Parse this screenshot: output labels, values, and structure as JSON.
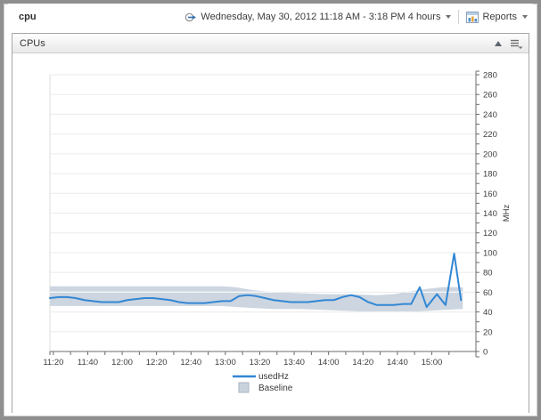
{
  "window": {
    "title": "cpu"
  },
  "topbar": {
    "timerange": "Wednesday, May 30, 2012 11:18 AM - 3:18 PM 4 hours",
    "timerange_icon": "time-range-arrow-icon",
    "reports_label": "Reports",
    "reports_icon": "report-table-icon"
  },
  "panel": {
    "title": "CPUs",
    "collapse_icon": "collapse-up-triangle",
    "menu_icon": "list-menu-with-caret"
  },
  "chart_data": {
    "type": "line",
    "title": "",
    "xlabel": "",
    "ylabel": "MHz",
    "ylim": [
      0,
      280
    ],
    "y_label_step": 20,
    "y_minor_step": 10,
    "grid": true,
    "legend_position": "bottom",
    "x_start": "11:18",
    "x_total_minutes": 240,
    "x_minor_step_minutes": 10,
    "x_major_ticks": [
      {
        "t": 2,
        "label": "11:20"
      },
      {
        "t": 22,
        "label": "11:40"
      },
      {
        "t": 42,
        "label": "12:00"
      },
      {
        "t": 62,
        "label": "12:20"
      },
      {
        "t": 82,
        "label": "12:40"
      },
      {
        "t": 102,
        "label": "13:00"
      },
      {
        "t": 122,
        "label": "13:20"
      },
      {
        "t": 142,
        "label": "13:40"
      },
      {
        "t": 162,
        "label": "14:00"
      },
      {
        "t": 182,
        "label": "14:20"
      },
      {
        "t": 202,
        "label": "14:40"
      },
      {
        "t": 222,
        "label": "15:00"
      }
    ],
    "series": [
      {
        "name": "Baseline",
        "type": "band",
        "color": "#c9d3de",
        "border_color": "#a9b6c3",
        "t": [
          0,
          60,
          100,
          108,
          118,
          130,
          145,
          160,
          175,
          190,
          200,
          210,
          218,
          228,
          240
        ],
        "upper": [
          66,
          66,
          66,
          65,
          62,
          60,
          59,
          58,
          58,
          57,
          58,
          61,
          63,
          65,
          65
        ],
        "lower": [
          46,
          46,
          46,
          45,
          44,
          43,
          43,
          42,
          41,
          40,
          40,
          40,
          41,
          42,
          43
        ]
      },
      {
        "name": "usedHz",
        "type": "line",
        "color": "#3287d4",
        "points": [
          [
            0,
            54
          ],
          [
            5,
            55
          ],
          [
            10,
            55
          ],
          [
            15,
            54
          ],
          [
            20,
            52
          ],
          [
            25,
            51
          ],
          [
            30,
            50
          ],
          [
            35,
            50
          ],
          [
            40,
            50
          ],
          [
            45,
            52
          ],
          [
            50,
            53
          ],
          [
            55,
            54
          ],
          [
            60,
            54
          ],
          [
            65,
            53
          ],
          [
            70,
            52
          ],
          [
            75,
            50
          ],
          [
            80,
            49
          ],
          [
            85,
            49
          ],
          [
            90,
            49
          ],
          [
            95,
            50
          ],
          [
            100,
            51
          ],
          [
            105,
            51
          ],
          [
            110,
            56
          ],
          [
            115,
            57
          ],
          [
            120,
            56
          ],
          [
            125,
            54
          ],
          [
            130,
            52
          ],
          [
            135,
            51
          ],
          [
            140,
            50
          ],
          [
            145,
            50
          ],
          [
            150,
            50
          ],
          [
            155,
            51
          ],
          [
            160,
            52
          ],
          [
            165,
            52
          ],
          [
            170,
            55
          ],
          [
            175,
            57
          ],
          [
            180,
            55
          ],
          [
            185,
            50
          ],
          [
            190,
            47
          ],
          [
            195,
            47
          ],
          [
            200,
            47
          ],
          [
            205,
            48
          ],
          [
            210,
            48
          ],
          [
            215,
            65
          ],
          [
            219,
            45
          ],
          [
            225,
            58
          ],
          [
            230,
            47
          ],
          [
            235,
            99
          ],
          [
            239,
            52
          ]
        ]
      }
    ],
    "legend": [
      {
        "label": "usedHz",
        "swatch": "line",
        "color": "#3287d4"
      },
      {
        "label": "Baseline",
        "swatch": "square",
        "color": "#c9d3de"
      }
    ]
  }
}
